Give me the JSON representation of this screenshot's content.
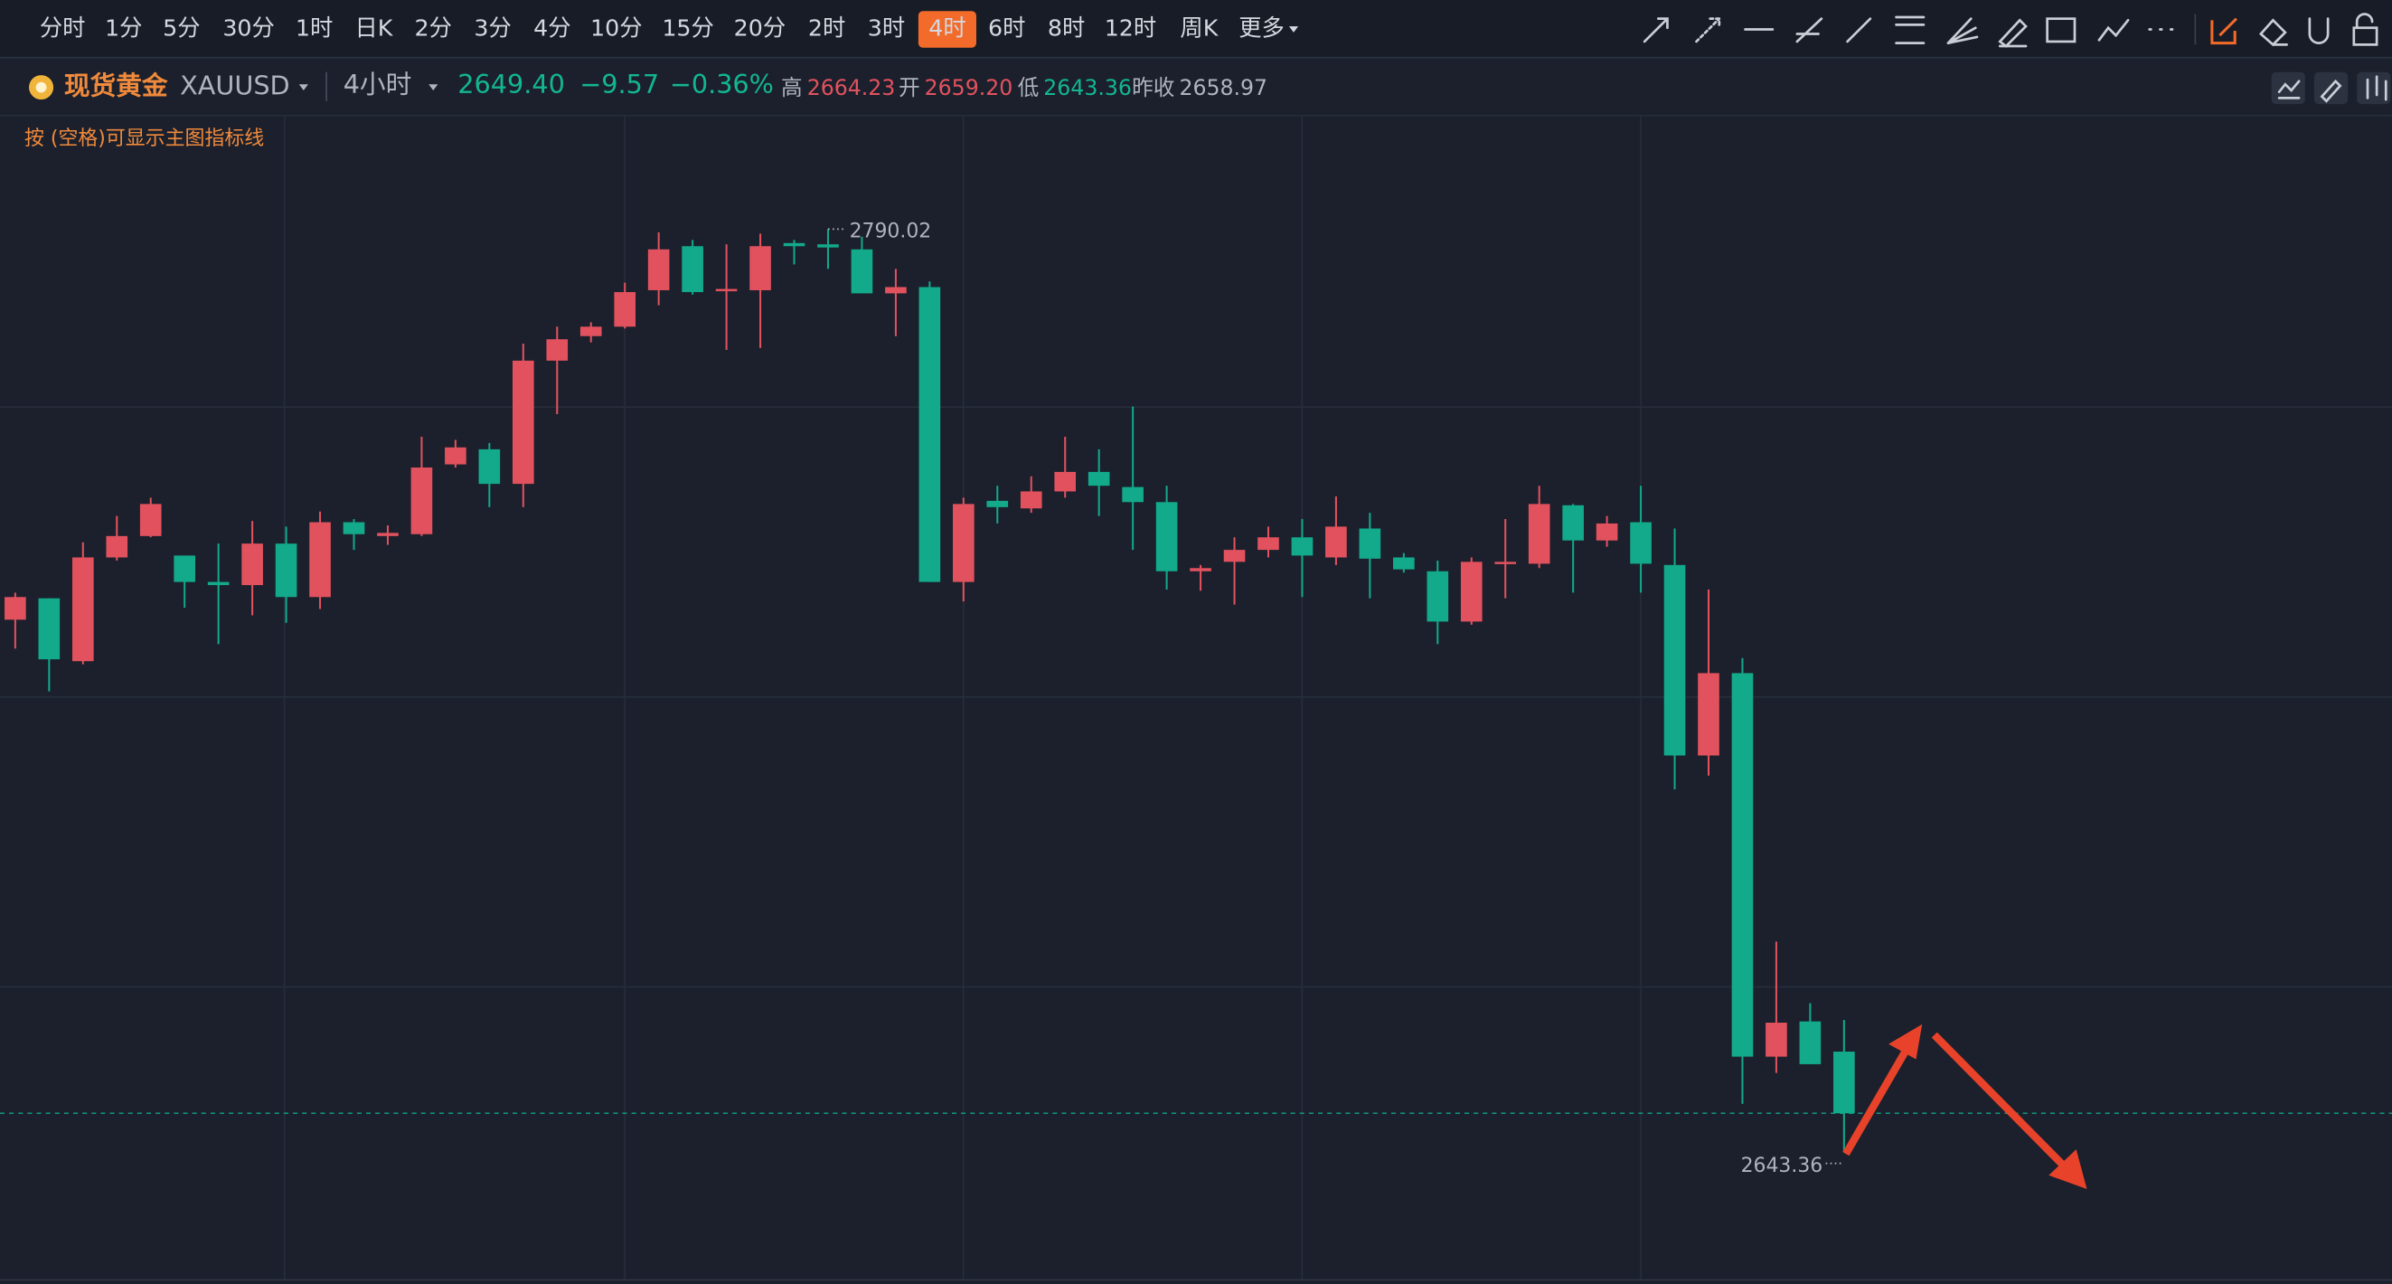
{
  "toolbar": {
    "intervals": [
      "分时",
      "1分",
      "5分",
      "30分",
      "1时",
      "日K",
      "2分",
      "3分",
      "4分",
      "10分",
      "15分",
      "20分",
      "2时",
      "3时",
      "4时",
      "6时",
      "8时",
      "12时",
      "周K",
      "更多"
    ],
    "active": "4时"
  },
  "header": {
    "name": "现货黄金",
    "symbol": "XAUUSD",
    "period": "4小时",
    "price": "2649.40",
    "change": "−9.57",
    "change_pct": "−0.36%",
    "high_label": "高",
    "high": "2664.23",
    "open_label": "开",
    "open": "2659.20",
    "low_label": "低",
    "low": "2643.36",
    "prev_close_label": "昨收",
    "prev_close": "2658.97"
  },
  "hint": "按 (空格)可显示主图指标线",
  "chart_data": {
    "type": "candlestick",
    "up_color": "#e2525e",
    "down_color": "#13a98b",
    "ylim": [
      2622.3,
      2826.4
    ],
    "ohlc": [
      [
        2727.9,
        2732.2,
        2723.3,
        2731.5
      ],
      [
        2731.3,
        2731.3,
        2716.5,
        2721.6
      ],
      [
        2721.3,
        2740.2,
        2720.8,
        2737.8
      ],
      [
        2737.8,
        2744.4,
        2737.3,
        2741.2
      ],
      [
        2741.2,
        2747.3,
        2741.0,
        2746.3
      ],
      [
        2738.1,
        2738.1,
        2729.8,
        2733.9
      ],
      [
        2733.9,
        2740.0,
        2724.0,
        2733.4
      ],
      [
        2733.4,
        2743.6,
        2728.6,
        2740.0
      ],
      [
        2740.0,
        2742.7,
        2727.4,
        2731.5
      ],
      [
        2731.5,
        2745.1,
        2729.6,
        2743.4
      ],
      [
        2743.4,
        2743.9,
        2739.0,
        2741.5
      ],
      [
        2741.2,
        2742.9,
        2739.8,
        2741.7
      ],
      [
        2741.5,
        2757.0,
        2741.2,
        2752.1
      ],
      [
        2752.6,
        2756.5,
        2752.1,
        2755.3
      ],
      [
        2755.0,
        2756.0,
        2745.8,
        2749.5
      ],
      [
        2749.5,
        2771.8,
        2745.8,
        2769.1
      ],
      [
        2769.1,
        2774.5,
        2760.6,
        2772.5
      ],
      [
        2773.0,
        2775.2,
        2772.0,
        2774.5
      ],
      [
        2774.5,
        2781.5,
        2774.2,
        2780.0
      ],
      [
        2780.3,
        2789.5,
        2777.9,
        2786.8
      ],
      [
        2787.3,
        2788.3,
        2779.6,
        2780.0
      ],
      [
        2780.3,
        2787.6,
        2770.8,
        2780.5
      ],
      [
        2780.3,
        2789.3,
        2771.1,
        2787.3
      ],
      [
        2787.8,
        2788.3,
        2784.4,
        2787.3
      ],
      [
        2787.6,
        2790.02,
        2783.7,
        2787.1
      ],
      [
        2786.8,
        2788.8,
        2779.8,
        2779.8
      ],
      [
        2779.8,
        2783.7,
        2773.0,
        2780.8
      ],
      [
        2780.8,
        2781.7,
        2733.9,
        2733.9
      ],
      [
        2733.9,
        2747.3,
        2730.8,
        2746.3
      ],
      [
        2746.8,
        2749.2,
        2743.2,
        2745.8
      ],
      [
        2745.6,
        2750.7,
        2744.9,
        2748.3
      ],
      [
        2748.3,
        2757.0,
        2747.3,
        2751.4
      ],
      [
        2751.4,
        2755.0,
        2744.4,
        2749.2
      ],
      [
        2749.0,
        2761.8,
        2739.0,
        2746.6
      ],
      [
        2746.6,
        2749.2,
        2732.7,
        2735.6
      ],
      [
        2735.6,
        2736.6,
        2732.5,
        2736.1
      ],
      [
        2737.1,
        2741.0,
        2730.3,
        2739.0
      ],
      [
        2739.0,
        2742.7,
        2737.8,
        2741.0
      ],
      [
        2741.0,
        2743.9,
        2731.5,
        2738.1
      ],
      [
        2737.8,
        2747.5,
        2736.6,
        2742.7
      ],
      [
        2742.4,
        2744.9,
        2731.3,
        2737.6
      ],
      [
        2737.8,
        2738.5,
        2735.4,
        2735.9
      ],
      [
        2735.6,
        2737.3,
        2724.0,
        2727.6
      ],
      [
        2727.6,
        2737.8,
        2727.1,
        2737.1
      ],
      [
        2736.8,
        2743.9,
        2731.3,
        2737.1
      ],
      [
        2736.8,
        2749.2,
        2736.1,
        2746.3
      ],
      [
        2746.1,
        2746.3,
        2732.2,
        2740.5
      ],
      [
        2740.5,
        2744.4,
        2739.5,
        2743.2
      ],
      [
        2743.4,
        2749.2,
        2732.2,
        2736.8
      ],
      [
        2736.6,
        2742.4,
        2700.9,
        2706.3
      ],
      [
        2706.3,
        2732.7,
        2703.1,
        2719.4
      ],
      [
        2719.4,
        2721.8,
        2650.9,
        2658.4
      ],
      [
        2658.4,
        2676.7,
        2655.8,
        2663.8
      ],
      [
        2664.0,
        2666.9,
        2657.2,
        2657.2
      ],
      [
        2659.2,
        2664.23,
        2643.36,
        2649.4
      ]
    ]
  }
}
